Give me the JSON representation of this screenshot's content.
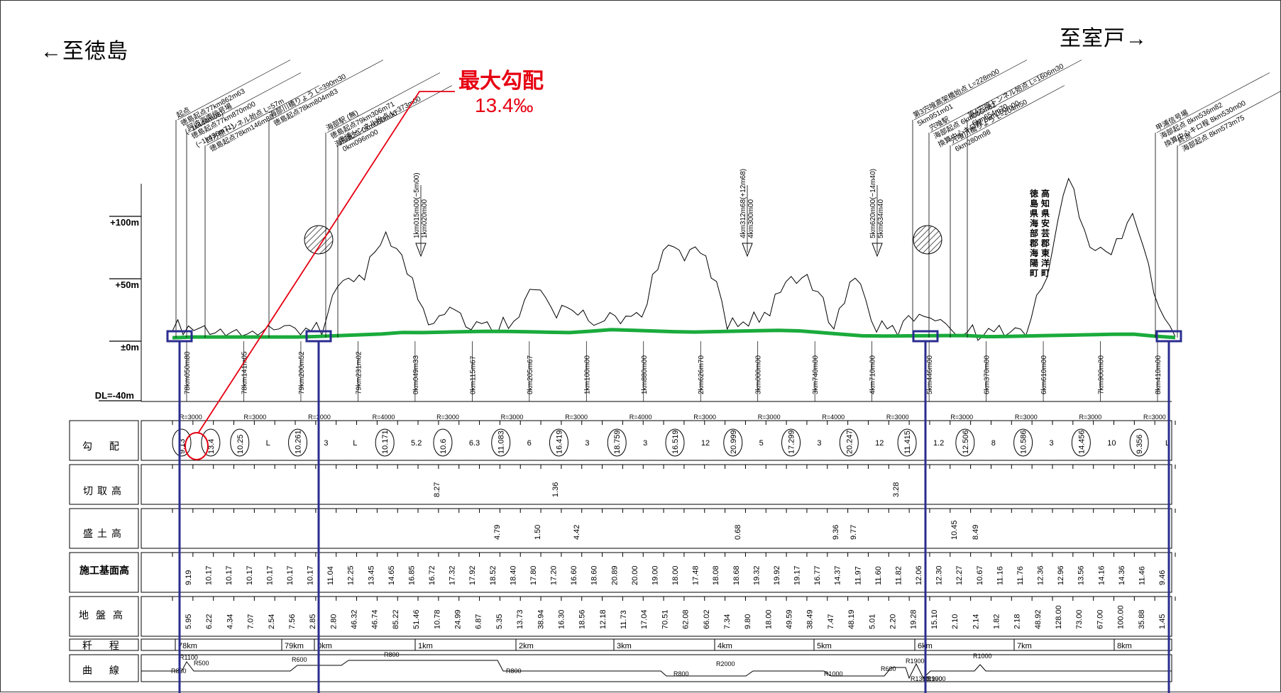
{
  "directions": {
    "left": "←至徳島",
    "right": "至室戸→"
  },
  "callout": {
    "title": "最大勾配",
    "value": "13.4‰"
  },
  "elevation_labels": [
    "+100m",
    "+50m",
    "±0m",
    "DL=-40m"
  ],
  "row_labels": {
    "gradient": "勾 配",
    "cut_height": "切取高",
    "fill_height": "盛土高",
    "formation_height": "施工基面高",
    "ground_height": "地盤高",
    "chainage": "粁 程",
    "curve": "曲 線"
  },
  "landmarks": [
    {
      "name": "起点",
      "lines": [
        "起点",
        "徳島起点77km862m63",
        "(−1k444m08)"
      ]
    },
    {
      "name": "阿波海南信号場",
      "lines": [
        "阿波海南信号場",
        "徳島起点77km870m00",
        "(−1k436m71)"
      ]
    },
    {
      "name": "四方原トンネル",
      "lines": [
        "四方原トンネル始点 L=57m",
        "徳島起点78km146m80"
      ]
    },
    {
      "name": "海部川橋りょう",
      "lines": [
        "海部川橋りょう L=390m30",
        "徳島起点78km804m83"
      ]
    },
    {
      "name": "海部駅",
      "lines": [
        "海部駅 (無)",
        "徳島起点79km306m71",
        "海部起点 0km000m00"
      ]
    },
    {
      "name": "奥浦トンネル",
      "lines": [
        "奥浦トンネル始点 L=373m00",
        "0km096m00"
      ]
    },
    {
      "name": "第3宍喰高架橋",
      "lines": [
        "第3宍喰高架橋始点 L=228m00",
        "5km951m01"
      ]
    },
    {
      "name": "宍喰駅",
      "lines": [
        "宍喰駅",
        "海部起点 6km066m82",
        "換算中心キロ程 6km060m00"
      ]
    },
    {
      "name": "宍喰川橋りょう",
      "lines": [
        "宍喰川橋りょう L=204m50",
        "6km280m98"
      ]
    },
    {
      "name": "第4宍喰トンネル",
      "lines": [
        "第4宍喰トンネル始点 L=1606m30",
        "6km654m70"
      ]
    },
    {
      "name": "甲浦信号場",
      "lines": [
        "甲浦信号場",
        "海部起点 8km536m82",
        "換算中心キロ程 8km530m00"
      ]
    },
    {
      "name": "終点",
      "lines": [
        "終点",
        "海部起点 8km573m75"
      ]
    }
  ],
  "gradient_change_labels": [
    {
      "text": "1km015m00(−5m00)",
      "sub": "1km020m00"
    },
    {
      "text": "4km312m68(+12m68)",
      "sub": "4km300m00"
    },
    {
      "text": "5km620m00(−14m40)",
      "sub": "5km634m40"
    }
  ],
  "prefecture_boundary": {
    "lines": [
      "徳島県海部郡海陽町",
      "高知県安芸郡東洋町"
    ]
  },
  "vertical_station_labels": [
    "78km050m80",
    "78km141m05",
    "79km200m52",
    "79km231m02",
    "0km049m33",
    "0km115m67",
    "0km205m67",
    "1km100m00",
    "1km880m00",
    "2km626m70",
    "3km000m00",
    "3km740m00",
    "4km710m00",
    "5km446m00",
    "6km370m00",
    "6km610m00",
    "7km900m00",
    "8km410m00"
  ],
  "vertical_curve_radii": [
    "R=3000",
    "R=3000",
    "R=3000",
    "R=4000",
    "R=3000",
    "R=3000",
    "R=3000",
    "R=4000",
    "R=3000",
    "R=3000",
    "R=4000",
    "R=3000",
    "R=3000",
    "R=3000",
    "R=3000",
    "R=3000"
  ],
  "gradients": [
    "9.13",
    "13.4",
    "10.25",
    "L",
    "10.261",
    "3",
    "L",
    "10.171",
    "5.2",
    "10.6",
    "6.3",
    "11.083",
    "6",
    "16.419",
    "3",
    "18.759",
    "3",
    "16.519",
    "12",
    "20.999",
    "5",
    "17.299",
    "3",
    "20.247",
    "12",
    "11.415",
    "1.2",
    "12.506",
    "8",
    "10.586",
    "3",
    "14.456",
    "10",
    "9.356",
    "L"
  ],
  "cut_heights": [
    "8.27",
    "1.36",
    "3.28"
  ],
  "fill_heights": [
    "4.79",
    "1.50",
    "4.42",
    "0.68",
    "9.36",
    "9.77",
    "10.45",
    "8.49"
  ],
  "formation_heights": [
    "9.19",
    "10.17",
    "10.17",
    "10.17",
    "10.17",
    "10.17",
    "10.17",
    "11.04",
    "12.25",
    "13.45",
    "14.65",
    "16.85",
    "16.72",
    "17.32",
    "17.92",
    "18.52",
    "18.40",
    "17.80",
    "17.20",
    "16.60",
    "18.60",
    "20.89",
    "20.00",
    "19.00",
    "18.00",
    "17.48",
    "18.08",
    "18.68",
    "19.32",
    "19.92",
    "19.17",
    "16.77",
    "14.37",
    "11.97",
    "11.60",
    "11.82",
    "12.06",
    "12.30",
    "12.27",
    "10.67",
    "11.16",
    "11.76",
    "12.36",
    "12.96",
    "13.56",
    "14.16",
    "14.36",
    "11.46",
    "9.46"
  ],
  "ground_heights": [
    "5.95",
    "6.22",
    "4.34",
    "7.07",
    "2.54",
    "7.56",
    "2.85",
    "2.80",
    "46.32",
    "46.74",
    "85.22",
    "51.46",
    "10.78",
    "24.99",
    "6.87",
    "5.35",
    "13.73",
    "38.94",
    "16.30",
    "18.56",
    "12.18",
    "11.73",
    "17.04",
    "70.51",
    "62.08",
    "66.02",
    "7.34",
    "9.80",
    "18.00",
    "49.59",
    "38.49",
    "7.47",
    "48.19",
    "5.01",
    "2.20",
    "19.28",
    "15.10",
    "2.10",
    "2.14",
    "1.82",
    "2.18",
    "48.92",
    "128.00",
    "73.00",
    "67.00",
    "100.00",
    "35.88",
    "1.45"
  ],
  "chainage_labels": [
    "78km",
    "79km",
    "0km",
    "1km",
    "2km",
    "3km",
    "4km",
    "5km",
    "6km",
    "7km",
    "8km"
  ],
  "curve_labels": [
    "R1100",
    "R830",
    "R500",
    "R600",
    "R800",
    "R800",
    "R800",
    "R2000",
    "R1000",
    "R600",
    "R1900",
    "R1900",
    "R1000",
    "R1300",
    "R1900"
  ],
  "colors": {
    "formation_line": "#1aab3c",
    "callout": "#e60012",
    "marker": "#2b2d8f",
    "grid": "#000000"
  }
}
